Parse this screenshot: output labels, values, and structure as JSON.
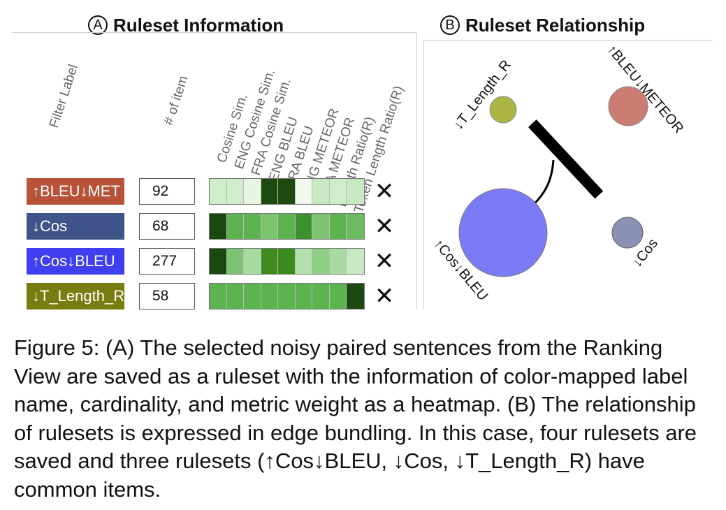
{
  "panel_a": {
    "circle_letter": "A",
    "title": "Ruleset Information",
    "column_headers": {
      "filter_label": "Filter Label",
      "num_items": "# of item",
      "metrics": [
        "Cosine Sim.",
        "ENG Cosine Sim.",
        "FRA Cosine Sim.",
        "ENG BLEU",
        "FRA BLEU",
        "ENG METEOR",
        "FRA METEOR",
        "Length Ratio(R)",
        "Token Length Ratio(R)"
      ]
    },
    "rows": [
      {
        "label": "↑BLEU↓MET",
        "count": "92",
        "color": "#b8533a",
        "heat": [
          "#cfeccb",
          "#cfeccb",
          "#e6f6e3",
          "#1e4a10",
          "#1e4a10",
          "#f1f9ef",
          "#c7e9c2",
          "#cfeccb",
          "#c7e9c2"
        ]
      },
      {
        "label": "↓Cos",
        "count": "68",
        "color": "#3f5488",
        "heat": [
          "#1b4710",
          "#5cb350",
          "#5cb350",
          "#7cc470",
          "#5cb350",
          "#3e8f2e",
          "#7cc470",
          "#5cb350",
          "#6dbd60"
        ]
      },
      {
        "label": "↑Cos↓BLEU",
        "count": "277",
        "color": "#3f3ff0",
        "heat": [
          "#1b4710",
          "#7cc470",
          "#a6daa0",
          "#3f8a1c",
          "#3b8a1e",
          "#b3e0ad",
          "#8ccf82",
          "#a6daa0",
          "#c7e9c2"
        ]
      },
      {
        "label": "↓T_Length_R",
        "count": "58",
        "color": "#787d10",
        "heat": [
          "#5cb350",
          "#5cb350",
          "#5cb350",
          "#5cb350",
          "#5cb350",
          "#5cb350",
          "#5cb350",
          "#5cb350",
          "#1b4710"
        ]
      }
    ],
    "delete_symbol": "✕"
  },
  "panel_b": {
    "circle_letter": "B",
    "title": "Ruleset Relationship",
    "nodes": [
      {
        "label": "↓T_Length_R",
        "color": "#aab543"
      },
      {
        "label": "↑BLEU↓METEOR",
        "color": "#cc7d73"
      },
      {
        "label": "↑Cos↓BLEU",
        "color": "#7b7bf5"
      },
      {
        "label": "↓Cos",
        "color": "#8a91b3"
      }
    ]
  },
  "caption": "Figure 5: (A) The selected noisy paired sentences from the Ranking View are saved as a ruleset with the information of color-mapped label name, cardinality, and metric weight as a heatmap. (B) The relationship of rulesets is expressed in edge bundling. In this case, four rulesets are saved and three rulesets (↑Cos↓BLEU, ↓Cos, ↓T_Length_R) have common items."
}
